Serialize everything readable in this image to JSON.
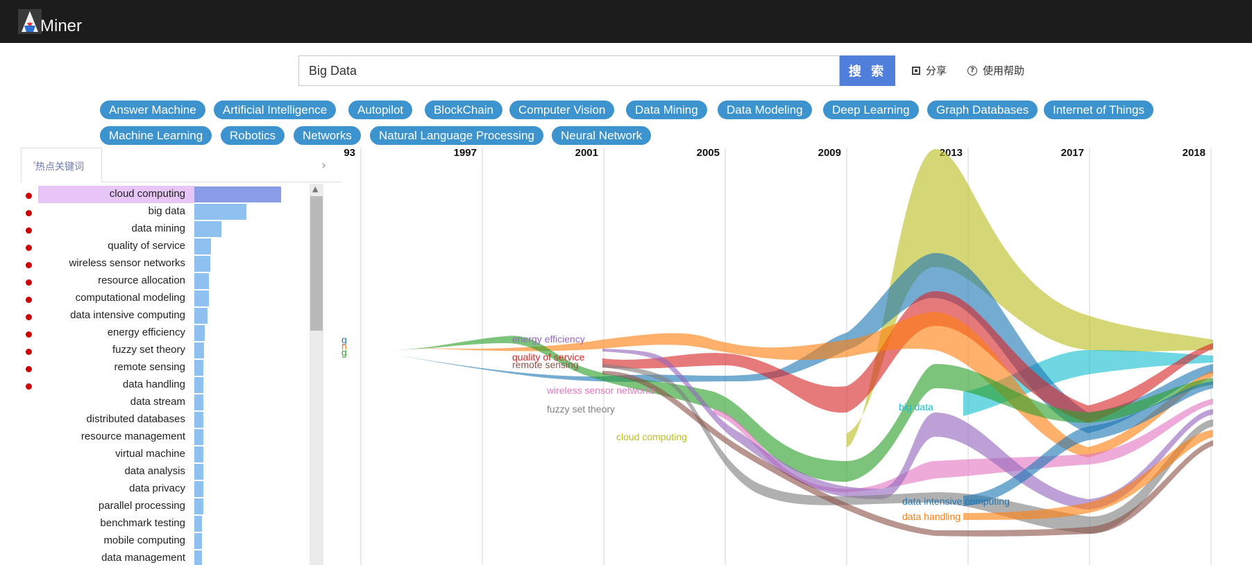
{
  "app": {
    "name": "Miner"
  },
  "search": {
    "value": "Big Data",
    "button_label": "搜 索"
  },
  "header_links": {
    "share": "分享",
    "help": "使用帮助"
  },
  "tags": [
    "Answer Machine",
    "Artificial Intelligence",
    "Autopilot",
    "BlockChain",
    "Computer Vision",
    "Data Mining",
    "Data Modeling",
    "Deep Learning",
    "Graph Databases",
    "Internet of Things",
    "Machine Learning",
    "Robotics",
    "Networks",
    "Natural Language Processing",
    "Neural Network"
  ],
  "panel": {
    "tab_label": "热点关键词"
  },
  "keywords": [
    {
      "label": "cloud computing",
      "value": 100,
      "hot": true
    },
    {
      "label": "big data",
      "value": 60,
      "hot": true
    },
    {
      "label": "data mining",
      "value": 31,
      "hot": true
    },
    {
      "label": "quality of service",
      "value": 19,
      "hot": true
    },
    {
      "label": "wireless sensor networks",
      "value": 18,
      "hot": true
    },
    {
      "label": "resource allocation",
      "value": 17,
      "hot": true
    },
    {
      "label": "computational modeling",
      "value": 17,
      "hot": true
    },
    {
      "label": "data intensive computing",
      "value": 15,
      "hot": true
    },
    {
      "label": "energy efficiency",
      "value": 12,
      "hot": true
    },
    {
      "label": "fuzzy set theory",
      "value": 11,
      "hot": true
    },
    {
      "label": "remote sensing",
      "value": 10,
      "hot": true
    },
    {
      "label": "data handling",
      "value": 10,
      "hot": true
    },
    {
      "label": "data stream",
      "value": 10,
      "hot": false
    },
    {
      "label": "distributed databases",
      "value": 10,
      "hot": false
    },
    {
      "label": "resource management",
      "value": 10,
      "hot": false
    },
    {
      "label": "virtual machine",
      "value": 10,
      "hot": false
    },
    {
      "label": "data analysis",
      "value": 10,
      "hot": false
    },
    {
      "label": "data privacy",
      "value": 10,
      "hot": false
    },
    {
      "label": "parallel processing",
      "value": 10,
      "hot": false
    },
    {
      "label": "benchmark testing",
      "value": 9,
      "hot": false
    },
    {
      "label": "mobile computing",
      "value": 9,
      "hot": false
    },
    {
      "label": "data management",
      "value": 9,
      "hot": false
    }
  ],
  "stream": {
    "years": [
      "93",
      "1997",
      "2001",
      "2005",
      "2009",
      "2013",
      "2017",
      "2018"
    ],
    "left_labels": [
      "g",
      "n",
      "g"
    ],
    "labels": [
      {
        "text": "energy efficiency",
        "color": "#9467bd"
      },
      {
        "text": "quality of service",
        "color": "#d62728"
      },
      {
        "text": "remote sensing",
        "color": "#8c564b"
      },
      {
        "text": "wireless sensor networks",
        "color": "#e377c2"
      },
      {
        "text": "fuzzy set theory",
        "color": "#7f7f7f"
      },
      {
        "text": "cloud computing",
        "color": "#bcbd22"
      },
      {
        "text": "big data",
        "color": "#17becf"
      },
      {
        "text": "data intensive computing",
        "color": "#1f77b4"
      },
      {
        "text": "data handling",
        "color": "#ff7f0e"
      }
    ]
  }
}
